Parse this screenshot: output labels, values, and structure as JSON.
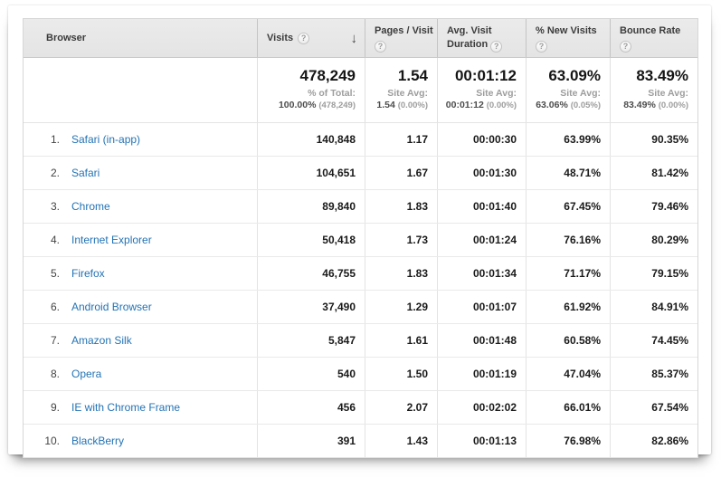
{
  "colors": {
    "link_blue": "#2373b5",
    "header_bg": "#e8e8e8",
    "value_text": "#1a1a1a",
    "subtext_gray": "#9d9d9d"
  },
  "icons": {
    "help": "?",
    "sort_desc": "↓"
  },
  "table": {
    "columns": [
      {
        "label": "Browser",
        "help": false
      },
      {
        "label": "Visits",
        "help": true,
        "sorted": "descending"
      },
      {
        "label": "Pages / Visit",
        "help": true
      },
      {
        "label": "Avg. Visit Duration",
        "help": true
      },
      {
        "label": "% New Visits",
        "help": true
      },
      {
        "label": "Bounce Rate",
        "help": true
      }
    ],
    "summary": {
      "visits": {
        "value": "478,249",
        "sub_label": "% of Total:",
        "sub_value": "100.00%",
        "sub_paren": "(478,249)"
      },
      "pages_per_visit": {
        "value": "1.54",
        "sub_label": "Site Avg:",
        "sub_value": "1.54",
        "sub_paren": "(0.00%)"
      },
      "avg_visit_duration": {
        "value": "00:01:12",
        "sub_label": "Site Avg:",
        "sub_value": "00:01:12",
        "sub_paren": "(0.00%)"
      },
      "pct_new_visits": {
        "value": "63.09%",
        "sub_label": "Site Avg:",
        "sub_value": "63.06%",
        "sub_paren": "(0.05%)"
      },
      "bounce_rate": {
        "value": "83.49%",
        "sub_label": "Site Avg:",
        "sub_value": "83.49%",
        "sub_paren": "(0.00%)"
      }
    },
    "rows": [
      {
        "rank": "1.",
        "browser": "Safari (in-app)",
        "visits": "140,848",
        "pages_per_visit": "1.17",
        "avg_visit_duration": "00:00:30",
        "pct_new_visits": "63.99%",
        "bounce_rate": "90.35%"
      },
      {
        "rank": "2.",
        "browser": "Safari",
        "visits": "104,651",
        "pages_per_visit": "1.67",
        "avg_visit_duration": "00:01:30",
        "pct_new_visits": "48.71%",
        "bounce_rate": "81.42%"
      },
      {
        "rank": "3.",
        "browser": "Chrome",
        "visits": "89,840",
        "pages_per_visit": "1.83",
        "avg_visit_duration": "00:01:40",
        "pct_new_visits": "67.45%",
        "bounce_rate": "79.46%"
      },
      {
        "rank": "4.",
        "browser": "Internet Explorer",
        "visits": "50,418",
        "pages_per_visit": "1.73",
        "avg_visit_duration": "00:01:24",
        "pct_new_visits": "76.16%",
        "bounce_rate": "80.29%"
      },
      {
        "rank": "5.",
        "browser": "Firefox",
        "visits": "46,755",
        "pages_per_visit": "1.83",
        "avg_visit_duration": "00:01:34",
        "pct_new_visits": "71.17%",
        "bounce_rate": "79.15%"
      },
      {
        "rank": "6.",
        "browser": "Android Browser",
        "visits": "37,490",
        "pages_per_visit": "1.29",
        "avg_visit_duration": "00:01:07",
        "pct_new_visits": "61.92%",
        "bounce_rate": "84.91%"
      },
      {
        "rank": "7.",
        "browser": "Amazon Silk",
        "visits": "5,847",
        "pages_per_visit": "1.61",
        "avg_visit_duration": "00:01:48",
        "pct_new_visits": "60.58%",
        "bounce_rate": "74.45%"
      },
      {
        "rank": "8.",
        "browser": "Opera",
        "visits": "540",
        "pages_per_visit": "1.50",
        "avg_visit_duration": "00:01:19",
        "pct_new_visits": "47.04%",
        "bounce_rate": "85.37%"
      },
      {
        "rank": "9.",
        "browser": "IE with Chrome Frame",
        "visits": "456",
        "pages_per_visit": "2.07",
        "avg_visit_duration": "00:02:02",
        "pct_new_visits": "66.01%",
        "bounce_rate": "67.54%"
      },
      {
        "rank": "10.",
        "browser": "BlackBerry",
        "visits": "391",
        "pages_per_visit": "1.43",
        "avg_visit_duration": "00:01:13",
        "pct_new_visits": "76.98%",
        "bounce_rate": "82.86%"
      }
    ]
  }
}
